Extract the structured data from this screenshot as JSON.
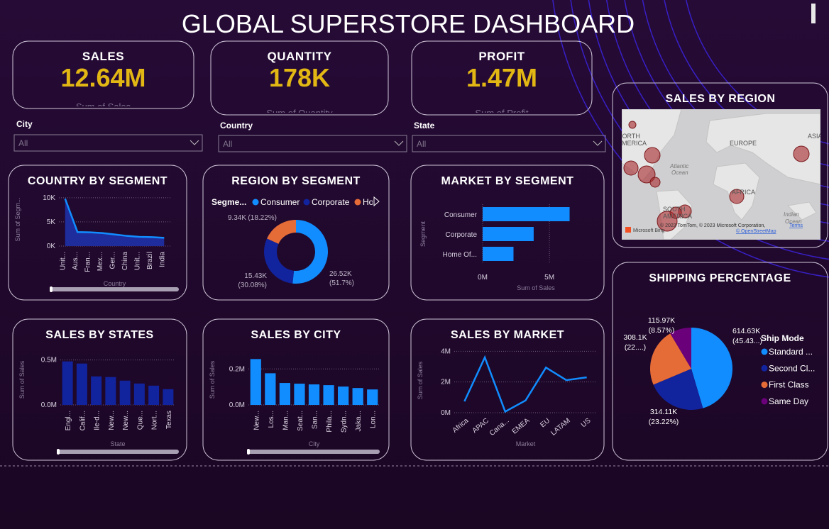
{
  "header": {
    "title": "GLOBAL SUPERSTORE DASHBOARD"
  },
  "kpis": [
    {
      "label": "SALES",
      "value": "12.64M",
      "caption": "Sum of Sales"
    },
    {
      "label": "QUANTITY",
      "value": "178K",
      "caption": "Sum of Quantity"
    },
    {
      "label": "PROFIT",
      "value": "1.47M",
      "caption": "Sum of Profit"
    }
  ],
  "slicers": [
    {
      "label": "City",
      "value": "All"
    },
    {
      "label": "Country",
      "value": "All"
    },
    {
      "label": "State",
      "value": "All"
    }
  ],
  "map": {
    "title": "SALES BY REGION",
    "labels": [
      "NORTH",
      "AMERICA",
      "Atlantic",
      "Ocean",
      "EUROPE",
      "ASIA",
      "AFRICA",
      "SOUTH",
      "AMERICA",
      "Indian",
      "Ocean"
    ],
    "attribution": "© 2023 TomTom, © 2023 Microsoft Corporation,",
    "terms": "Terms",
    "osm": "© OpenStreetMap",
    "provider": "Microsoft Bing"
  },
  "chart_data": [
    {
      "type": "area",
      "title": "COUNTRY BY SEGMENT",
      "x_label": "Country",
      "y_label": "Sum of Segm...",
      "categories": [
        "Unit...",
        "Aus...",
        "Fran...",
        "Mex...",
        "Ger...",
        "China",
        "Unit...",
        "Brazil",
        "India"
      ],
      "values": [
        9800,
        2900,
        2850,
        2700,
        2400,
        2100,
        1900,
        1850,
        1700
      ],
      "color": "#118dff",
      "fill": "#1f2c9c",
      "ylim": [
        0,
        11000
      ],
      "yticks": [
        {
          "value": 0,
          "label": "0K"
        },
        {
          "value": 5000,
          "label": "5K"
        },
        {
          "value": 10000,
          "label": "10K"
        }
      ]
    },
    {
      "type": "donut",
      "title": "REGION BY SEGMENT",
      "legend_title": "Segme...",
      "categories": [
        "Consumer",
        "Corporate",
        "Home Office"
      ],
      "values": [
        26520,
        15430,
        9340
      ],
      "value_labels": [
        "26.52K",
        "15.43K",
        "9.34K"
      ],
      "percent_labels": [
        "(51.7%)",
        "(30.08%)",
        "(18.22%)"
      ],
      "colors": [
        "#118dff",
        "#12239e",
        "#e66c37"
      ]
    },
    {
      "type": "hbar",
      "title": "MARKET BY SEGMENT",
      "x_label": "Sum of Sales",
      "y_label": "Segment",
      "categories": [
        "Consumer",
        "Corporate",
        "Home Of..."
      ],
      "values": [
        6510000,
        3820000,
        2310000
      ],
      "color": "#118dff",
      "xlim": [
        0,
        8500000
      ],
      "xticks": [
        {
          "value": 0,
          "label": "0M"
        },
        {
          "value": 5000000,
          "label": "5M"
        }
      ]
    },
    {
      "type": "bar",
      "title": "SALES BY STATES",
      "x_label": "State",
      "y_label": "Sum of Sales",
      "categories": [
        "Engl...",
        "Calif...",
        "Ile-d...",
        "New...",
        "New...",
        "Que...",
        "Nort...",
        "Texas"
      ],
      "values": [
        484000,
        460000,
        317000,
        310000,
        270000,
        238000,
        214000,
        175000
      ],
      "color": "#12239e",
      "ylim": [
        0,
        560000
      ],
      "yticks": [
        {
          "value": 0,
          "label": "0.0M"
        },
        {
          "value": 500000,
          "label": "0.5M"
        }
      ]
    },
    {
      "type": "bar",
      "title": "SALES BY CITY",
      "x_label": "City",
      "y_label": "Sum of Sales",
      "categories": [
        "New...",
        "Los...",
        "Man...",
        "Seat...",
        "San...",
        "Phila...",
        "Sydn...",
        "Jaka...",
        "Lon..."
      ],
      "values": [
        255000,
        176000,
        122000,
        118000,
        114000,
        110000,
        102000,
        94000,
        86000
      ],
      "color": "#118dff",
      "ylim": [
        0,
        280000
      ],
      "yticks": [
        {
          "value": 0,
          "label": "0.0M"
        },
        {
          "value": 200000,
          "label": "0.2M"
        }
      ]
    },
    {
      "type": "line",
      "title": "SALES BY MARKET",
      "x_label": "Market",
      "y_label": "Sum of Sales",
      "categories": [
        "Africa",
        "APAC",
        "Cana...",
        "EMEA",
        "EU",
        "LATAM",
        "US"
      ],
      "values": [
        740000,
        3600000,
        70000,
        800000,
        2940000,
        2120000,
        2300000
      ],
      "color": "#118dff",
      "ylim": [
        0,
        4200000
      ],
      "yticks": [
        {
          "value": 0,
          "label": "0M"
        },
        {
          "value": 2000000,
          "label": "2M"
        },
        {
          "value": 4000000,
          "label": "4M"
        }
      ]
    },
    {
      "type": "pie",
      "title": "SHIPPING PERCENTAGE",
      "legend_title": "Ship Mode",
      "categories": [
        "Standard ...",
        "Second Cl...",
        "First Class",
        "Same Day"
      ],
      "values": [
        614630,
        314110,
        308100,
        115970
      ],
      "value_labels": [
        "614.63K",
        "314.11K",
        "308.1K",
        "115.97K"
      ],
      "percent_labels": [
        "(45.43...)",
        "(23.22%)",
        "(22....)",
        "(8.57%)"
      ],
      "colors": [
        "#118dff",
        "#12239e",
        "#e66c37",
        "#6b007b"
      ]
    }
  ]
}
